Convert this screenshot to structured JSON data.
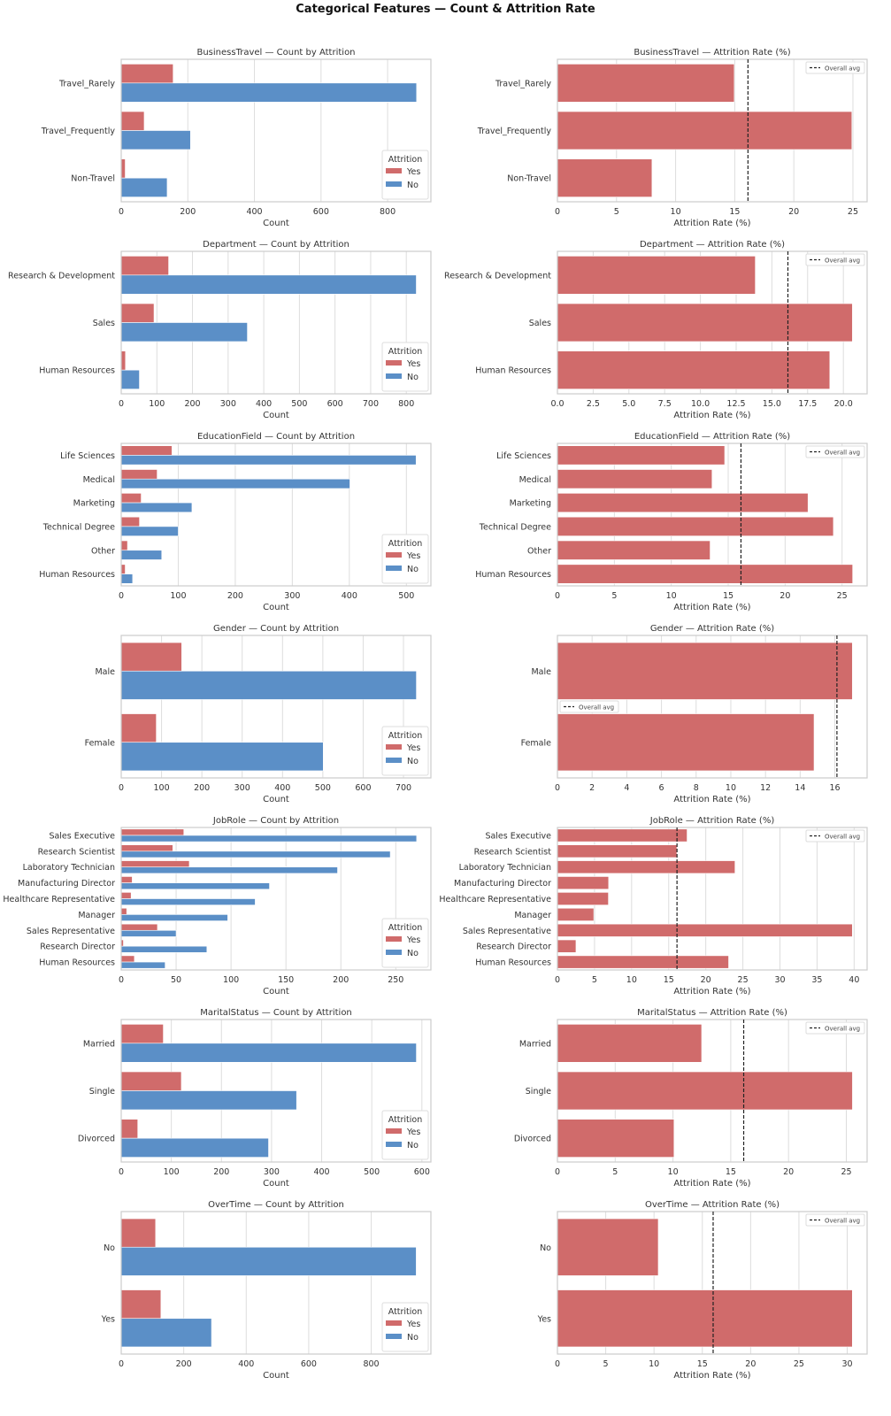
{
  "title": "Categorical Features — Count & Attrition Rate",
  "colors": {
    "yes": "#d06b6b",
    "no": "#5b8fc7",
    "rate_bar": "#d06b6b",
    "avg_line": "#222222",
    "grid": "#dddddd",
    "frame": "#cccccc"
  },
  "legend": {
    "count_title": "Attrition",
    "yes_label": "Yes",
    "no_label": "No",
    "rate_label": "Overall avg"
  },
  "chart_data": [
    {
      "type": "bar",
      "orientation": "horizontal",
      "feature": "BusinessTravel",
      "title": "BusinessTravel — Count by Attrition",
      "xlabel": "Count",
      "ylabel": "",
      "categories": [
        "Travel_Rarely",
        "Travel_Frequently",
        "Non-Travel"
      ],
      "series": [
        {
          "name": "Yes",
          "values": [
            156,
            69,
            12
          ]
        },
        {
          "name": "No",
          "values": [
            887,
            208,
            138
          ]
        }
      ],
      "xlim": [
        0,
        930
      ],
      "xticks": [
        0,
        200,
        400,
        600,
        800
      ],
      "grid": true,
      "legend_position": "lower-right"
    },
    {
      "type": "bar",
      "orientation": "horizontal",
      "feature": "BusinessTravel",
      "title": "BusinessTravel — Attrition Rate (%)",
      "xlabel": "Attrition Rate (%)",
      "ylabel": "",
      "categories": [
        "Travel_Rarely",
        "Travel_Frequently",
        "Non-Travel"
      ],
      "values": [
        14.96,
        24.91,
        8.0
      ],
      "overall_avg": 16.12,
      "xlim": [
        0,
        26.2
      ],
      "xticks": [
        0,
        5,
        10,
        15,
        20,
        25
      ],
      "grid": true,
      "legend_position": "upper-right"
    },
    {
      "type": "bar",
      "orientation": "horizontal",
      "feature": "Department",
      "title": "Department — Count by Attrition",
      "xlabel": "Count",
      "ylabel": "",
      "categories": [
        "Research & Development",
        "Sales",
        "Human Resources"
      ],
      "series": [
        {
          "name": "Yes",
          "values": [
            133,
            92,
            12
          ]
        },
        {
          "name": "No",
          "values": [
            828,
            354,
            51
          ]
        }
      ],
      "xlim": [
        0,
        869
      ],
      "xticks": [
        0,
        100,
        200,
        300,
        400,
        500,
        600,
        700,
        800
      ],
      "grid": true,
      "legend_position": "lower-right"
    },
    {
      "type": "bar",
      "orientation": "horizontal",
      "feature": "Department",
      "title": "Department — Attrition Rate (%)",
      "xlabel": "Attrition Rate (%)",
      "ylabel": "",
      "categories": [
        "Research & Development",
        "Sales",
        "Human Resources"
      ],
      "values": [
        13.84,
        20.63,
        19.05
      ],
      "overall_avg": 16.12,
      "xlim": [
        0,
        21.66
      ],
      "xticks": [
        0.0,
        2.5,
        5.0,
        7.5,
        10.0,
        12.5,
        15.0,
        17.5,
        20.0
      ],
      "xtick_format": "1f",
      "grid": true,
      "legend_position": "upper-right"
    },
    {
      "type": "bar",
      "orientation": "horizontal",
      "feature": "EducationField",
      "title": "EducationField — Count by Attrition",
      "xlabel": "Count",
      "ylabel": "",
      "categories": [
        "Life Sciences",
        "Medical",
        "Marketing",
        "Technical Degree",
        "Other",
        "Human Resources"
      ],
      "series": [
        {
          "name": "Yes",
          "values": [
            89,
            63,
            35,
            32,
            11,
            7
          ]
        },
        {
          "name": "No",
          "values": [
            517,
            401,
            124,
            100,
            71,
            20
          ]
        }
      ],
      "xlim": [
        0,
        543
      ],
      "xticks": [
        0,
        100,
        200,
        300,
        400,
        500
      ],
      "grid": true,
      "legend_position": "lower-right"
    },
    {
      "type": "bar",
      "orientation": "horizontal",
      "feature": "EducationField",
      "title": "EducationField — Attrition Rate (%)",
      "xlabel": "Attrition Rate (%)",
      "ylabel": "",
      "categories": [
        "Life Sciences",
        "Medical",
        "Marketing",
        "Technical Degree",
        "Other",
        "Human Resources"
      ],
      "values": [
        14.69,
        13.58,
        22.01,
        24.24,
        13.41,
        25.93
      ],
      "overall_avg": 16.12,
      "xlim": [
        0,
        27.2
      ],
      "xticks": [
        0,
        5,
        10,
        15,
        20,
        25
      ],
      "grid": true,
      "legend_position": "upper-right"
    },
    {
      "type": "bar",
      "orientation": "horizontal",
      "feature": "Gender",
      "title": "Gender — Count by Attrition",
      "xlabel": "Count",
      "ylabel": "",
      "categories": [
        "Male",
        "Female"
      ],
      "series": [
        {
          "name": "Yes",
          "values": [
            150,
            87
          ]
        },
        {
          "name": "No",
          "values": [
            732,
            501
          ]
        }
      ],
      "xlim": [
        0,
        768
      ],
      "xticks": [
        0,
        100,
        200,
        300,
        400,
        500,
        600,
        700
      ],
      "grid": true,
      "legend_position": "lower-right"
    },
    {
      "type": "bar",
      "orientation": "horizontal",
      "feature": "Gender",
      "title": "Gender — Attrition Rate (%)",
      "xlabel": "Attrition Rate (%)",
      "ylabel": "",
      "categories": [
        "Male",
        "Female"
      ],
      "values": [
        17.01,
        14.8
      ],
      "overall_avg": 16.12,
      "xlim": [
        0,
        17.86
      ],
      "xticks": [
        0,
        2,
        4,
        6,
        8,
        10,
        12,
        14,
        16
      ],
      "grid": true,
      "legend_position": "center-left"
    },
    {
      "type": "bar",
      "orientation": "horizontal",
      "feature": "JobRole",
      "title": "JobRole — Count by Attrition",
      "xlabel": "Count",
      "ylabel": "",
      "categories": [
        "Sales Executive",
        "Research Scientist",
        "Laboratory Technician",
        "Manufacturing Director",
        "Healthcare Representative",
        "Manager",
        "Sales Representative",
        "Research Director",
        "Human Resources"
      ],
      "series": [
        {
          "name": "Yes",
          "values": [
            57,
            47,
            62,
            10,
            9,
            5,
            33,
            2,
            12
          ]
        },
        {
          "name": "No",
          "values": [
            269,
            245,
            197,
            135,
            122,
            97,
            50,
            78,
            40
          ]
        }
      ],
      "xlim": [
        0,
        282
      ],
      "xticks": [
        0,
        50,
        100,
        150,
        200,
        250
      ],
      "grid": true,
      "legend_position": "lower-right"
    },
    {
      "type": "bar",
      "orientation": "horizontal",
      "feature": "JobRole",
      "title": "JobRole — Attrition Rate (%)",
      "xlabel": "Attrition Rate (%)",
      "ylabel": "",
      "categories": [
        "Sales Executive",
        "Research Scientist",
        "Laboratory Technician",
        "Manufacturing Director",
        "Healthcare Representative",
        "Manager",
        "Sales Representative",
        "Research Director",
        "Human Resources"
      ],
      "values": [
        17.48,
        16.1,
        23.94,
        6.9,
        6.87,
        4.9,
        39.76,
        2.5,
        23.08
      ],
      "overall_avg": 16.12,
      "xlim": [
        0,
        41.75
      ],
      "xticks": [
        0,
        5,
        10,
        15,
        20,
        25,
        30,
        35,
        40
      ],
      "grid": true,
      "legend_position": "upper-right"
    },
    {
      "type": "bar",
      "orientation": "horizontal",
      "feature": "MaritalStatus",
      "title": "MaritalStatus — Count by Attrition",
      "xlabel": "Count",
      "ylabel": "",
      "categories": [
        "Married",
        "Single",
        "Divorced"
      ],
      "series": [
        {
          "name": "Yes",
          "values": [
            84,
            120,
            33
          ]
        },
        {
          "name": "No",
          "values": [
            589,
            350,
            294
          ]
        }
      ],
      "xlim": [
        0,
        618
      ],
      "xticks": [
        0,
        100,
        200,
        300,
        400,
        500,
        600
      ],
      "grid": true,
      "legend_position": "lower-right"
    },
    {
      "type": "bar",
      "orientation": "horizontal",
      "feature": "MaritalStatus",
      "title": "MaritalStatus — Attrition Rate (%)",
      "xlabel": "Attrition Rate (%)",
      "ylabel": "",
      "categories": [
        "Married",
        "Single",
        "Divorced"
      ],
      "values": [
        12.48,
        25.53,
        10.09
      ],
      "overall_avg": 16.12,
      "xlim": [
        0,
        26.8
      ],
      "xticks": [
        0,
        5,
        10,
        15,
        20,
        25
      ],
      "grid": true,
      "legend_position": "upper-right"
    },
    {
      "type": "bar",
      "orientation": "horizontal",
      "feature": "OverTime",
      "title": "OverTime — Count by Attrition",
      "xlabel": "Count",
      "ylabel": "",
      "categories": [
        "No",
        "Yes"
      ],
      "series": [
        {
          "name": "Yes",
          "values": [
            110,
            127
          ]
        },
        {
          "name": "No",
          "values": [
            944,
            289
          ]
        }
      ],
      "xlim": [
        0,
        991
      ],
      "xticks": [
        0,
        200,
        400,
        600,
        800
      ],
      "grid": true,
      "legend_position": "lower-right"
    },
    {
      "type": "bar",
      "orientation": "horizontal",
      "feature": "OverTime",
      "title": "OverTime — Attrition Rate (%)",
      "xlabel": "Attrition Rate (%)",
      "ylabel": "",
      "categories": [
        "No",
        "Yes"
      ],
      "values": [
        10.44,
        30.53
      ],
      "overall_avg": 16.12,
      "xlim": [
        0,
        32.06
      ],
      "xticks": [
        0,
        5,
        10,
        15,
        20,
        25,
        30
      ],
      "grid": true,
      "legend_position": "upper-right"
    }
  ]
}
